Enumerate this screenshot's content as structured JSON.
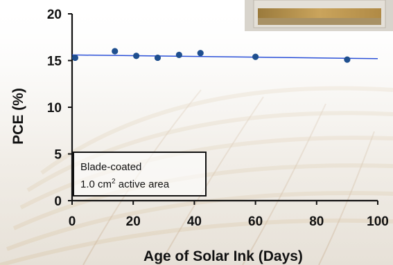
{
  "chart_data": {
    "type": "scatter",
    "xlabel": "Age of Solar Ink (Days)",
    "ylabel": "PCE (%)",
    "xlim": [
      0,
      100
    ],
    "ylim": [
      0,
      20
    ],
    "xticks": [
      0,
      20,
      40,
      60,
      80,
      100
    ],
    "yticks": [
      0,
      5,
      10,
      15,
      20
    ],
    "grid": false,
    "series": [
      {
        "x": [
          1,
          14,
          21,
          28,
          35,
          42,
          60,
          90
        ],
        "y": [
          15.3,
          16.0,
          15.5,
          15.3,
          15.6,
          15.8,
          15.4,
          15.1
        ],
        "color": "#1f4f8f"
      }
    ],
    "trendline": {
      "x": [
        0,
        100
      ],
      "y": [
        15.6,
        15.2
      ],
      "color": "#2a4fd8"
    },
    "annotation": {
      "line1": "Blade-coated",
      "line2_prefix": "1.0 cm",
      "line2_sup": "2",
      "line2_suffix": " active area"
    },
    "colors": {
      "marker": "#1f4f8f",
      "trend": "#2a4fd8",
      "axis": "#111111"
    }
  }
}
